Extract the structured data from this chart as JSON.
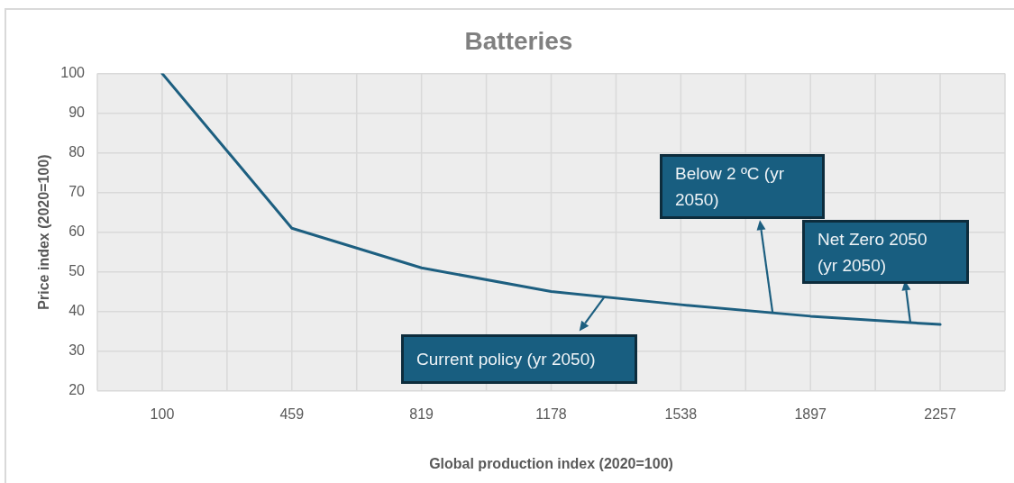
{
  "chart_data": {
    "type": "line",
    "title": "Batteries",
    "xlabel": "Global production index (2020=100)",
    "ylabel": "Price index (2020=100)",
    "categories": [
      "100",
      "459",
      "819",
      "1178",
      "1538",
      "1897",
      "2257"
    ],
    "values": [
      100,
      61,
      51,
      45,
      41.7,
      38.8,
      36.7
    ],
    "color": "#1d5f80",
    "ylim": [
      20,
      100
    ],
    "yticks": [
      20,
      30,
      40,
      50,
      60,
      70,
      80,
      90,
      100
    ],
    "grid": true,
    "legend": false,
    "marker": "none",
    "line_style": "solid",
    "annotations": [
      "Current policy (yr 2050)",
      "Below 2 ºC (yr 2050)",
      "Net Zero 2050 (yr 2050)"
    ]
  }
}
